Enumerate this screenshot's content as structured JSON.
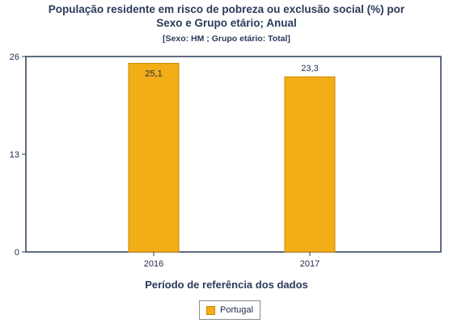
{
  "chart_data": {
    "type": "bar",
    "title": "População residente em risco de pobreza ou exclusão social (%) por Sexo e Grupo etário; Anual",
    "title_lines": [
      "População residente em risco de pobreza ou exclusão social (%) por",
      "Sexo e Grupo etário; Anual"
    ],
    "subtitle": "[Sexo: HM ; Grupo etário: Total]",
    "categories": [
      "2016",
      "2017"
    ],
    "series": [
      {
        "name": "Portugal",
        "values": [
          25.1,
          23.3
        ],
        "value_labels": [
          "25,1",
          "23,3"
        ],
        "color": "#f2ad17"
      }
    ],
    "xlabel": "Período de referência dos dados",
    "ylabel": "",
    "ylim": [
      0,
      26
    ],
    "yticks": [
      "0",
      "13",
      "26"
    ],
    "grid": false,
    "legend": "bottom-center"
  }
}
